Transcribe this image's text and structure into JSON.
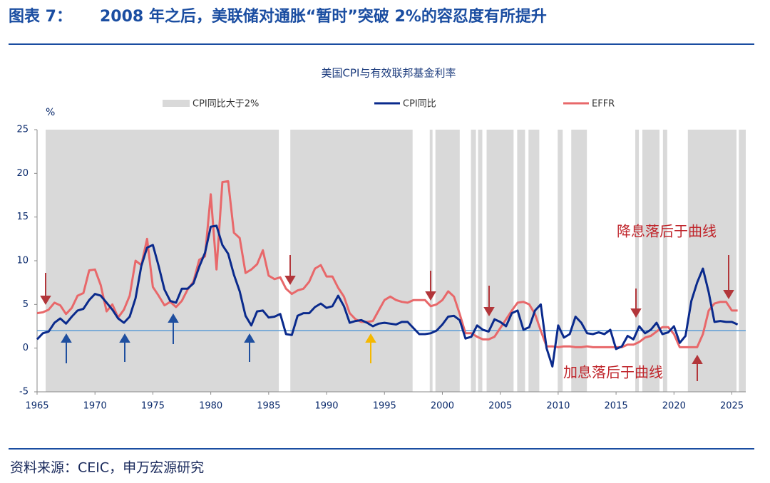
{
  "header": {
    "label": "图表 7：",
    "title": "2008 年之后，美联储对通胀“暂时”突破 2%的容忍度有所提升"
  },
  "source": "资料来源：CEIC，申万宏源研究",
  "chart_data": {
    "type": "line",
    "title": "美国CPI与有效联邦基金利率",
    "y_unit": "%",
    "xlim": [
      1965,
      2026.2
    ],
    "xticks": [
      1965,
      1970,
      1975,
      1980,
      1985,
      1990,
      1995,
      2000,
      2005,
      2010,
      2015,
      2020,
      2025
    ],
    "ylim": [
      -5,
      25
    ],
    "yticks": [
      -5,
      0,
      5,
      10,
      15,
      20,
      25
    ],
    "reference_line": {
      "value": 2,
      "color": "#5b9bd5"
    },
    "shaded_periods": {
      "name": "CPI同比大于2%",
      "color": "#d9d9d9",
      "ranges": [
        [
          1965.74,
          1985.88
        ],
        [
          1986.87,
          1997.43
        ],
        [
          1998.91,
          1999.15
        ],
        [
          1999.4,
          2001.5
        ],
        [
          2002.47,
          2002.9
        ],
        [
          2003.08,
          2003.45
        ],
        [
          2003.82,
          2006.15
        ],
        [
          2006.46,
          2007.14
        ],
        [
          2007.44,
          2008.37
        ],
        [
          2009.96,
          2010.39
        ],
        [
          2011.13,
          2012.48
        ],
        [
          2016.66,
          2016.97
        ],
        [
          2017.27,
          2018.75
        ],
        [
          2019.05,
          2019.42
        ],
        [
          2021.2,
          2025.4
        ],
        [
          2025.6,
          2026.2
        ]
      ]
    },
    "x": [
      1965,
      1965.5,
      1966,
      1966.5,
      1967,
      1967.5,
      1968,
      1968.5,
      1969,
      1969.5,
      1970,
      1970.5,
      1971,
      1971.5,
      1972,
      1972.5,
      1973,
      1973.5,
      1974,
      1974.5,
      1975,
      1975.5,
      1976,
      1976.5,
      1977,
      1977.5,
      1978,
      1978.5,
      1979,
      1979.5,
      1980,
      1980.5,
      1981,
      1981.5,
      1982,
      1982.5,
      1983,
      1983.5,
      1984,
      1984.5,
      1985,
      1985.5,
      1986,
      1986.5,
      1987,
      1987.5,
      1988,
      1988.5,
      1989,
      1989.5,
      1990,
      1990.5,
      1991,
      1991.5,
      1992,
      1992.5,
      1993,
      1993.5,
      1994,
      1994.5,
      1995,
      1995.5,
      1996,
      1996.5,
      1997,
      1997.5,
      1998,
      1998.5,
      1999,
      1999.5,
      2000,
      2000.5,
      2001,
      2001.5,
      2002,
      2002.5,
      2003,
      2003.5,
      2004,
      2004.5,
      2005,
      2005.5,
      2006,
      2006.5,
      2007,
      2007.5,
      2008,
      2008.5,
      2009,
      2009.5,
      2010,
      2010.5,
      2011,
      2011.5,
      2012,
      2012.5,
      2013,
      2013.5,
      2014,
      2014.5,
      2015,
      2015.5,
      2016,
      2016.5,
      2017,
      2017.5,
      2018,
      2018.5,
      2019,
      2019.5,
      2020,
      2020.5,
      2021,
      2021.5,
      2022,
      2022.5,
      2023,
      2023.5,
      2024,
      2024.5,
      2025,
      2025.5
    ],
    "series": [
      {
        "name": "CPI同比",
        "color": "#0a2a8c",
        "values": [
          1.0,
          1.7,
          1.9,
          2.9,
          3.4,
          2.8,
          3.6,
          4.3,
          4.5,
          5.5,
          6.2,
          6.0,
          5.2,
          4.4,
          3.4,
          2.9,
          3.6,
          5.7,
          9.4,
          11.5,
          11.8,
          9.4,
          6.7,
          5.4,
          5.2,
          6.8,
          6.8,
          7.4,
          9.3,
          10.9,
          13.9,
          14.0,
          11.8,
          10.8,
          8.4,
          6.5,
          3.7,
          2.6,
          4.2,
          4.3,
          3.5,
          3.6,
          3.9,
          1.6,
          1.5,
          3.7,
          4.0,
          4.0,
          4.7,
          5.1,
          4.6,
          4.8,
          6.0,
          4.8,
          2.9,
          3.1,
          3.2,
          2.9,
          2.5,
          2.8,
          2.9,
          2.8,
          2.7,
          3.0,
          3.0,
          2.3,
          1.6,
          1.6,
          1.7,
          2.0,
          2.7,
          3.6,
          3.7,
          3.2,
          1.1,
          1.3,
          2.6,
          2.1,
          1.9,
          3.3,
          3.0,
          2.5,
          4.0,
          4.3,
          2.1,
          2.4,
          4.3,
          5.0,
          0.0,
          -2.1,
          2.6,
          1.2,
          1.6,
          3.6,
          2.9,
          1.7,
          1.6,
          1.8,
          1.6,
          2.1,
          -0.1,
          0.2,
          1.4,
          1.0,
          2.5,
          1.7,
          2.1,
          2.9,
          1.6,
          1.8,
          2.5,
          0.6,
          1.4,
          5.4,
          7.5,
          9.1,
          6.4,
          3.0,
          3.1,
          3.0,
          3.0,
          2.7
        ]
      },
      {
        "name": "EFFR",
        "color": "#e8686a",
        "values": [
          4.0,
          4.1,
          4.4,
          5.2,
          4.9,
          3.9,
          4.6,
          6.0,
          6.3,
          8.9,
          9.0,
          7.2,
          4.2,
          5.0,
          3.5,
          4.4,
          6.0,
          10.0,
          9.5,
          12.5,
          7.0,
          6.0,
          4.9,
          5.3,
          4.7,
          5.4,
          6.7,
          7.6,
          10.1,
          10.5,
          17.6,
          9.0,
          19.0,
          19.1,
          13.2,
          12.6,
          8.6,
          9.0,
          9.6,
          11.2,
          8.3,
          7.9,
          8.1,
          6.8,
          6.2,
          6.6,
          6.8,
          7.6,
          9.1,
          9.5,
          8.2,
          8.2,
          6.9,
          5.9,
          4.0,
          3.3,
          3.0,
          3.0,
          3.1,
          4.3,
          5.5,
          5.9,
          5.5,
          5.3,
          5.2,
          5.5,
          5.5,
          5.5,
          4.8,
          5.0,
          5.5,
          6.5,
          5.9,
          3.9,
          1.7,
          1.7,
          1.3,
          1.0,
          1.0,
          1.3,
          2.3,
          3.3,
          4.3,
          5.2,
          5.3,
          5.0,
          3.9,
          2.0,
          0.2,
          0.2,
          0.1,
          0.2,
          0.2,
          0.1,
          0.1,
          0.2,
          0.1,
          0.1,
          0.1,
          0.1,
          0.1,
          0.1,
          0.4,
          0.4,
          0.7,
          1.2,
          1.4,
          1.9,
          2.4,
          2.4,
          1.6,
          0.1,
          0.1,
          0.1,
          0.1,
          1.6,
          4.3,
          5.1,
          5.3,
          5.3,
          4.3,
          4.3
        ]
      }
    ],
    "annotations": [
      {
        "text": "降息落后于曲线",
        "color": "#c0262c"
      },
      {
        "text": "加息落后于曲线",
        "color": "#c0262c"
      }
    ]
  }
}
